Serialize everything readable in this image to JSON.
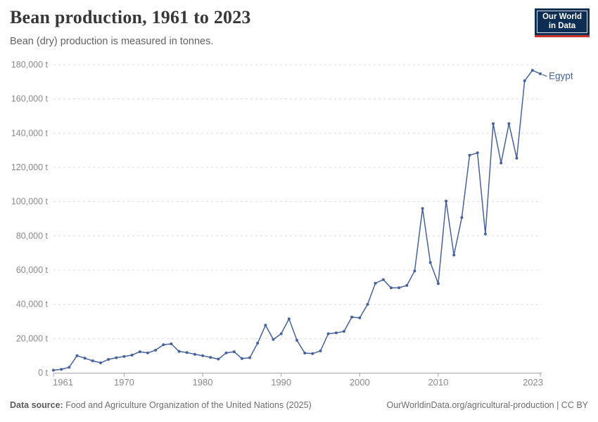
{
  "header": {
    "title": "Bean production, 1961 to 2023",
    "subtitle": "Bean (dry) production is measured in tonnes.",
    "logo": {
      "line1": "Our World",
      "line2": "in Data",
      "bg_color": "#0d2d52",
      "stripe_color": "#c9342f"
    }
  },
  "chart_data": {
    "type": "line",
    "title": "Bean production, 1961 to 2023",
    "subtitle": "Bean (dry) production is measured in tonnes.",
    "xlabel": "",
    "ylabel": "tonnes",
    "xlim": [
      1961,
      2023
    ],
    "ylim": [
      0,
      180000
    ],
    "grid": "horizontal-dashed",
    "legend_position": "end-of-line-label",
    "x_ticks": {
      "values": [
        1961,
        1970,
        1980,
        1990,
        2000,
        2010,
        2023
      ],
      "labels": [
        "1961",
        "1970",
        "1980",
        "1990",
        "2000",
        "2010",
        "2023"
      ]
    },
    "y_ticks": {
      "values": [
        0,
        20000,
        40000,
        60000,
        80000,
        100000,
        120000,
        140000,
        160000,
        180000
      ],
      "labels": [
        "0 t",
        "20,000 t",
        "40,000 t",
        "60,000 t",
        "80,000 t",
        "100,000 t",
        "120,000 t",
        "140,000 t",
        "160,000 t",
        "180,000 t"
      ]
    },
    "series": [
      {
        "name": "Egypt",
        "label": "Egypt",
        "color": "#46629E",
        "x": [
          1961,
          1962,
          1963,
          1964,
          1965,
          1966,
          1967,
          1968,
          1969,
          1970,
          1971,
          1972,
          1973,
          1974,
          1975,
          1976,
          1977,
          1978,
          1979,
          1980,
          1981,
          1982,
          1983,
          1984,
          1985,
          1986,
          1987,
          1988,
          1989,
          1990,
          1991,
          1992,
          1993,
          1994,
          1995,
          1996,
          1997,
          1998,
          1999,
          2000,
          2001,
          2002,
          2003,
          2004,
          2005,
          2006,
          2007,
          2008,
          2009,
          2010,
          2011,
          2012,
          2013,
          2014,
          2015,
          2016,
          2017,
          2018,
          2019,
          2020,
          2021,
          2022,
          2023
        ],
        "values": [
          1500,
          2000,
          3200,
          10000,
          8500,
          7000,
          5800,
          7800,
          8800,
          9500,
          10300,
          12300,
          11600,
          13200,
          16400,
          16900,
          12500,
          11800,
          10800,
          10000,
          9000,
          8000,
          11600,
          12300,
          8300,
          8800,
          17300,
          27800,
          19500,
          22800,
          31500,
          19000,
          11500,
          11200,
          12800,
          22800,
          23300,
          24200,
          32500,
          32100,
          40000,
          52300,
          54400,
          49600,
          49700,
          51000,
          59500,
          96000,
          64400,
          52100,
          100300,
          68800,
          90700,
          127100,
          128500,
          81100,
          145500,
          122600,
          145500,
          125400,
          170600,
          176700,
          174700
        ]
      }
    ]
  },
  "footer": {
    "source_label": "Data source:",
    "source_text": "Food and Agriculture Organization of the United Nations (2025)",
    "link_text": "OurWorldinData.org/agricultural-production | CC BY"
  }
}
